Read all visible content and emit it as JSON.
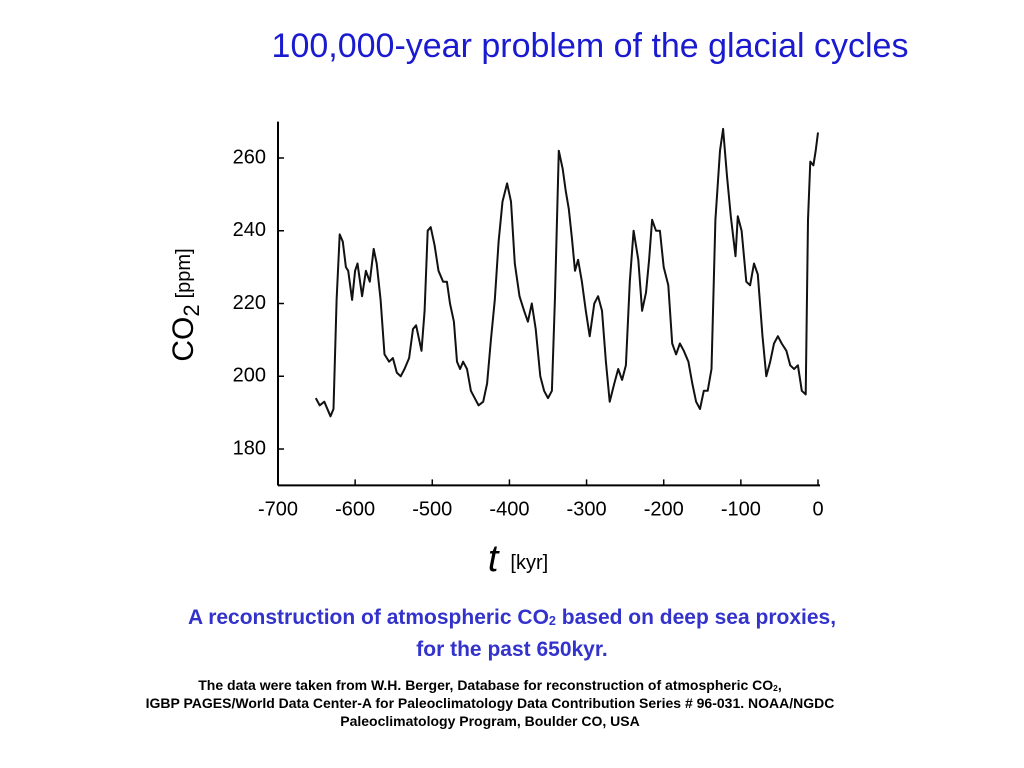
{
  "chart_data": {
    "type": "line",
    "title": "100,000-year problem of the glacial cycles",
    "y_label": {
      "main": "CO",
      "sub": "2",
      "unit": "[ppm]"
    },
    "x_label": {
      "main": "t",
      "unit": "[kyr]"
    },
    "xlim": [
      -700,
      0
    ],
    "ylim": [
      170,
      270
    ],
    "xticks": [
      -700,
      -600,
      -500,
      -400,
      -300,
      -200,
      -100,
      0
    ],
    "yticks": [
      180,
      200,
      220,
      240,
      260
    ],
    "color": "#111111",
    "x": [
      -651,
      -646,
      -640,
      -632,
      -628,
      -624,
      -620,
      -616,
      -612,
      -609,
      -604,
      -600,
      -597,
      -591,
      -586,
      -581,
      -576,
      -572,
      -567,
      -562,
      -556,
      -551,
      -546,
      -541,
      -536,
      -530,
      -525,
      -521,
      -517,
      -514,
      -510,
      -506,
      -502,
      -497,
      -492,
      -486,
      -481,
      -477,
      -472,
      -468,
      -464,
      -460,
      -455,
      -450,
      -445,
      -440,
      -434,
      -429,
      -424,
      -419,
      -414,
      -409,
      -403,
      -398,
      -393,
      -387,
      -381,
      -376,
      -371,
      -366,
      -360,
      -355,
      -350,
      -345,
      -341,
      -336,
      -331,
      -327,
      -323,
      -319,
      -315,
      -311,
      -306,
      -301,
      -296,
      -290,
      -285,
      -280,
      -275,
      -270,
      -264,
      -259,
      -254,
      -249,
      -244,
      -239,
      -233,
      -228,
      -223,
      -219,
      -215,
      -210,
      -205,
      -200,
      -194,
      -189,
      -184,
      -179,
      -174,
      -168,
      -163,
      -158,
      -153,
      -148,
      -143,
      -138,
      -133,
      -127,
      -123,
      -118,
      -113,
      -107,
      -104,
      -99,
      -93,
      -88,
      -83,
      -78,
      -72,
      -67,
      -62,
      -57,
      -52,
      -47,
      -41,
      -36,
      -31,
      -26,
      -21,
      -16,
      -13,
      -10,
      -6,
      -3,
      0
    ],
    "values": [
      194,
      192,
      193,
      189,
      191,
      221,
      239,
      237,
      230,
      229,
      221,
      229,
      231,
      222,
      229,
      226,
      235,
      231,
      221,
      206,
      204,
      205,
      201,
      200,
      202,
      205,
      213,
      214,
      210,
      207,
      218,
      240,
      241,
      236,
      229,
      226,
      226,
      220,
      215,
      204,
      202,
      204,
      202,
      196,
      194,
      192,
      193,
      198,
      210,
      221,
      237,
      248,
      253,
      248,
      231,
      222,
      218,
      215,
      220,
      213,
      200,
      196,
      194,
      196,
      221,
      262,
      257,
      251,
      246,
      238,
      229,
      232,
      226,
      218,
      211,
      220,
      222,
      218,
      204,
      193,
      198,
      202,
      199,
      203,
      226,
      240,
      232,
      218,
      223,
      232,
      243,
      240,
      240,
      230,
      225,
      209,
      206,
      209,
      207,
      204,
      198,
      193,
      191,
      196,
      196,
      202,
      243,
      262,
      268,
      255,
      244,
      233,
      244,
      240,
      226,
      225,
      231,
      228,
      211,
      200,
      204,
      209,
      211,
      209,
      207,
      203,
      202,
      203,
      196,
      195,
      243,
      259,
      258,
      262,
      267
    ]
  },
  "caption": {
    "line1_before": "A reconstruction of atmospheric CO",
    "line1_sub": "2",
    "line1_after": " based on deep sea proxies,",
    "line2": "for the past 650kyr."
  },
  "source": {
    "line1_before": "The data were taken from W.H. Berger, Database for reconstruction of atmospheric CO",
    "line1_sub": "2",
    "line1_after": ",",
    "line2": "IGBP PAGES/World Data Center-A for Paleoclimatology Data Contribution Series # 96-031. NOAA/NGDC",
    "line3": "Paleoclimatology Program, Boulder CO, USA"
  }
}
